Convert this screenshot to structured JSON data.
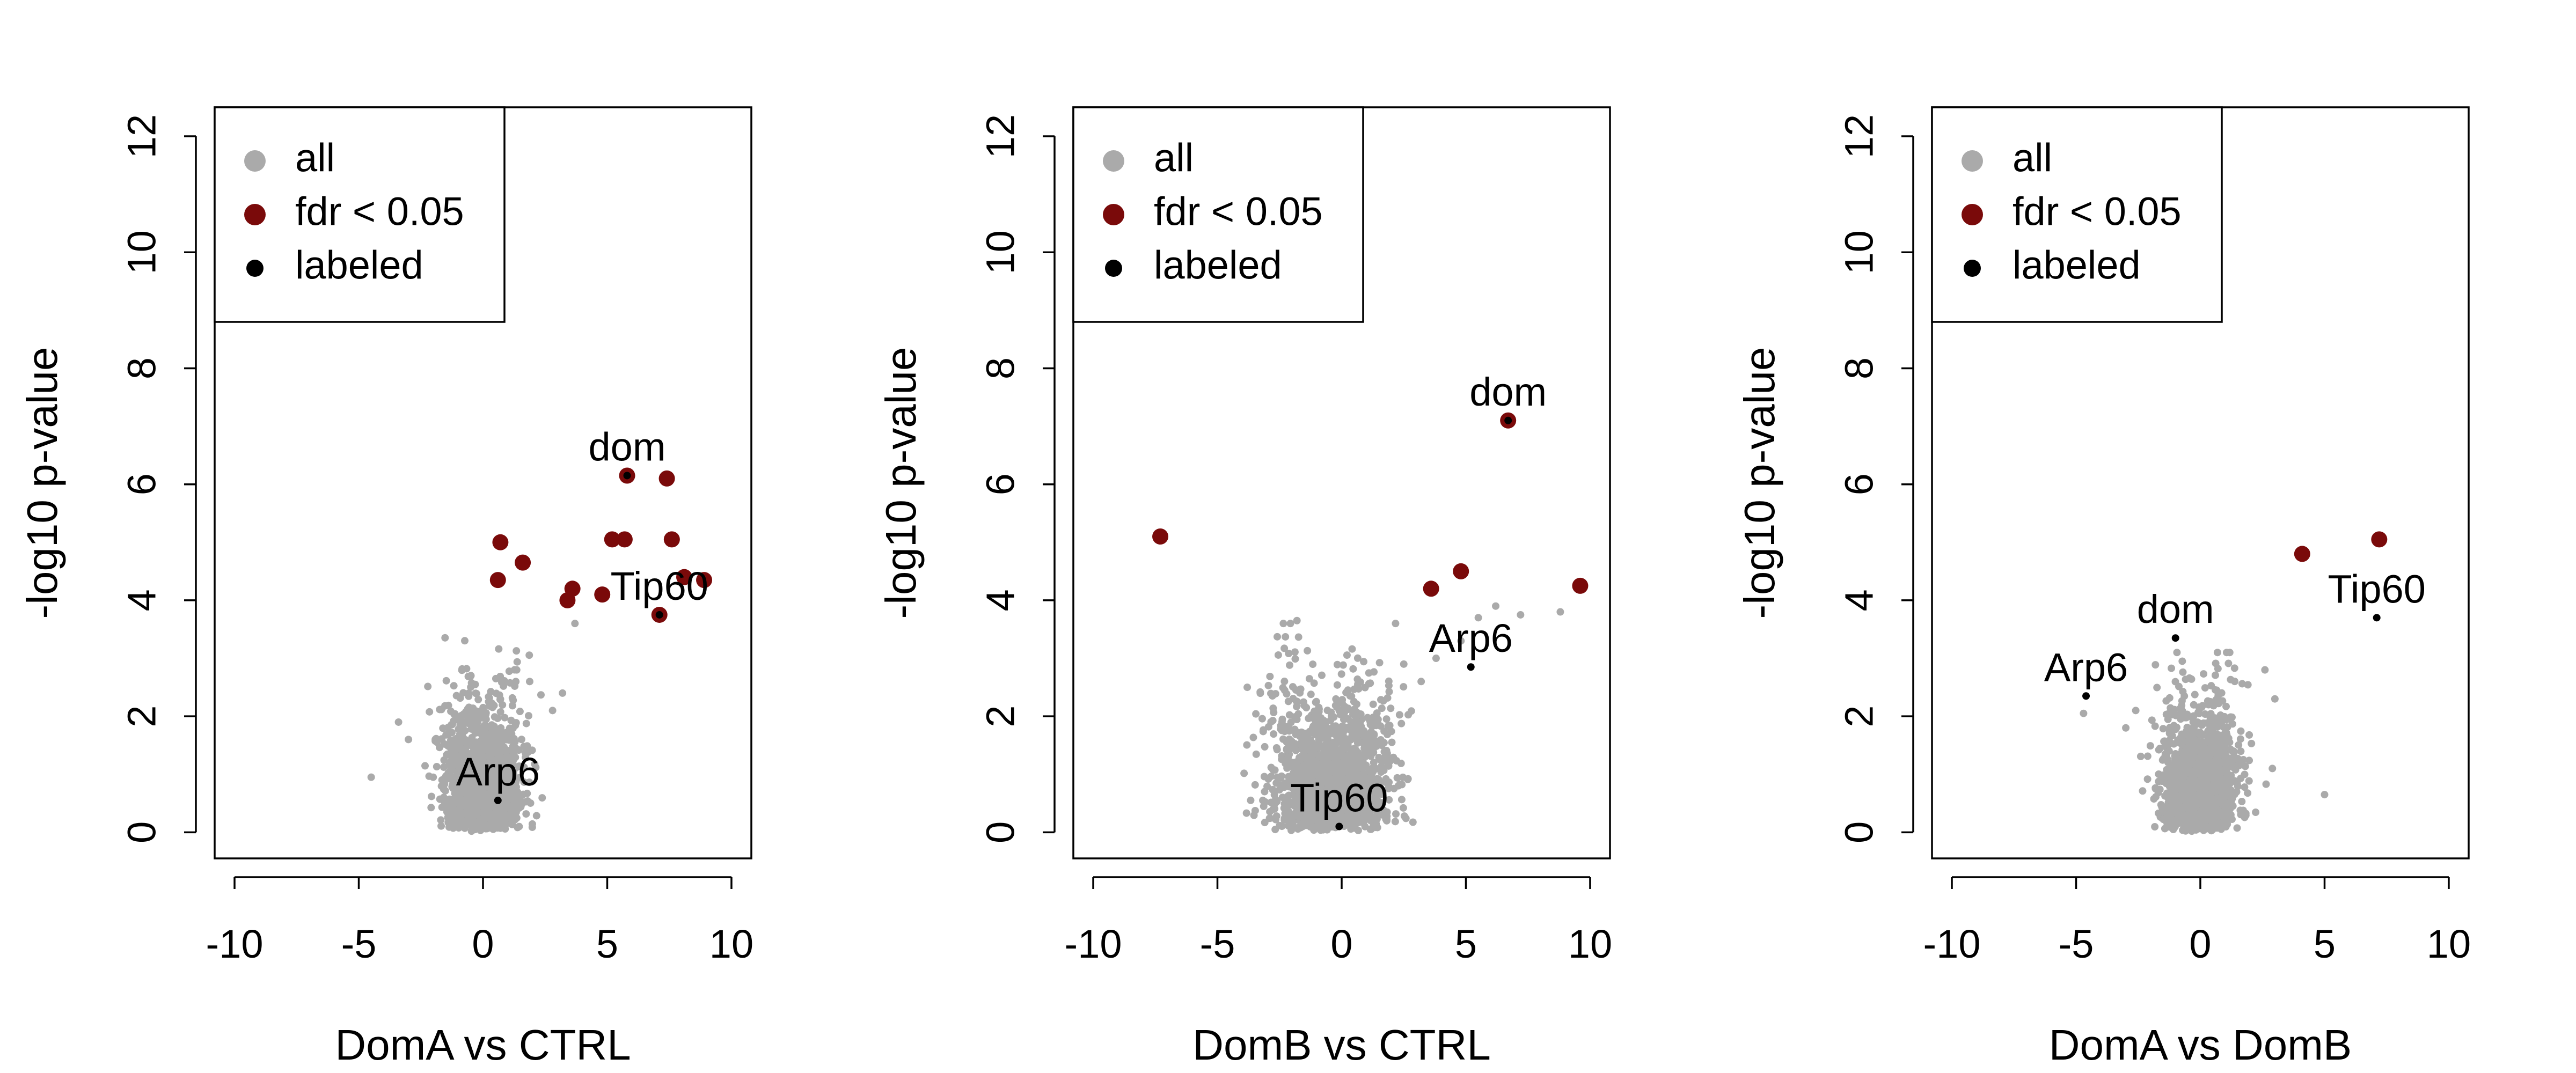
{
  "colors": {
    "all": "#aaaaaa",
    "fdr": "#7a0a0a",
    "labeled": "#000000"
  },
  "chart_data": [
    {
      "type": "scatter",
      "title": "",
      "xlabel": "DomA vs CTRL",
      "ylabel": "-log10 p-value",
      "xlim": [
        -10.8,
        10.8
      ],
      "ylim": [
        -0.45,
        12.5
      ],
      "xticks": [
        -10,
        -5,
        0,
        5,
        10
      ],
      "yticks": [
        0,
        2,
        4,
        6,
        8,
        10,
        12
      ],
      "grid": false,
      "legend": {
        "placement": "top-left",
        "entries": [
          "all",
          "fdr < 0.05",
          "labeled"
        ]
      },
      "cloud": {
        "center_x": 0.0,
        "spread_x": 0.75,
        "max_y": 3.4,
        "extra_points": [
          [
            -4.5,
            0.95
          ],
          [
            -3.4,
            1.9
          ],
          [
            3.2,
            2.4
          ],
          [
            2.8,
            2.1
          ],
          [
            -3.0,
            1.6
          ],
          [
            3.7,
            3.6
          ]
        ]
      },
      "series": [
        {
          "name": "fdr < 0.05",
          "points": [
            [
              0.7,
              5.0
            ],
            [
              0.6,
              4.35
            ],
            [
              1.6,
              4.65
            ],
            [
              3.6,
              4.2
            ],
            [
              3.4,
              4.0
            ],
            [
              4.8,
              4.1
            ],
            [
              5.2,
              5.05
            ],
            [
              5.7,
              5.05
            ],
            [
              5.8,
              6.15
            ],
            [
              7.4,
              6.1
            ],
            [
              7.6,
              5.05
            ],
            [
              8.1,
              4.4
            ],
            [
              8.9,
              4.35
            ],
            [
              7.1,
              3.75
            ]
          ]
        },
        {
          "name": "labeled",
          "points": [
            [
              5.8,
              6.15
            ],
            [
              7.1,
              3.75
            ],
            [
              0.6,
              0.55
            ]
          ]
        }
      ],
      "annotations": [
        {
          "text": "dom",
          "x": 5.8,
          "y": 6.15
        },
        {
          "text": "Tip60",
          "x": 7.1,
          "y": 3.75
        },
        {
          "text": "Arp6",
          "x": 0.6,
          "y": 0.55
        }
      ]
    },
    {
      "type": "scatter",
      "title": "",
      "xlabel": "DomB vs CTRL",
      "ylabel": "-log10 p-value",
      "xlim": [
        -10.8,
        10.8
      ],
      "ylim": [
        -0.45,
        12.5
      ],
      "xticks": [
        -10,
        -5,
        0,
        5,
        10
      ],
      "yticks": [
        0,
        2,
        4,
        6,
        8,
        10,
        12
      ],
      "grid": false,
      "legend": {
        "placement": "top-left",
        "entries": [
          "all",
          "fdr < 0.05",
          "labeled"
        ]
      },
      "cloud": {
        "center_x": -0.4,
        "spread_x": 1.1,
        "max_y": 3.6,
        "extra_points": [
          [
            -3.8,
            2.5
          ],
          [
            3.8,
            3.0
          ],
          [
            4.8,
            3.3
          ],
          [
            5.5,
            3.7
          ],
          [
            6.2,
            3.9
          ],
          [
            7.2,
            3.75
          ],
          [
            2.5,
            2.9
          ],
          [
            3.2,
            2.6
          ],
          [
            -1.8,
            3.65
          ],
          [
            8.8,
            3.8
          ]
        ]
      },
      "series": [
        {
          "name": "fdr < 0.05",
          "points": [
            [
              -7.3,
              5.1
            ],
            [
              3.6,
              4.2
            ],
            [
              4.8,
              4.5
            ],
            [
              6.7,
              7.1
            ],
            [
              9.6,
              4.25
            ]
          ]
        },
        {
          "name": "labeled",
          "points": [
            [
              6.7,
              7.1
            ],
            [
              5.2,
              2.85
            ],
            [
              -0.1,
              0.1
            ]
          ]
        }
      ],
      "annotations": [
        {
          "text": "dom",
          "x": 6.7,
          "y": 7.1
        },
        {
          "text": "Arp6",
          "x": 5.2,
          "y": 2.85
        },
        {
          "text": "Tip60",
          "x": -0.1,
          "y": 0.1
        }
      ]
    },
    {
      "type": "scatter",
      "title": "",
      "xlabel": "DomA vs DomB",
      "ylabel": "-log10 p-value",
      "xlim": [
        -10.8,
        10.8
      ],
      "ylim": [
        -0.45,
        12.5
      ],
      "xticks": [
        -10,
        -5,
        0,
        5,
        10
      ],
      "yticks": [
        0,
        2,
        4,
        6,
        8,
        10,
        12
      ],
      "grid": false,
      "legend": {
        "placement": "top-left",
        "entries": [
          "all",
          "fdr < 0.05",
          "labeled"
        ]
      },
      "cloud": {
        "center_x": 0.0,
        "spread_x": 0.7,
        "max_y": 3.1,
        "extra_points": [
          [
            -3.0,
            1.8
          ],
          [
            -2.6,
            2.1
          ],
          [
            2.6,
            2.8
          ],
          [
            3.0,
            2.3
          ],
          [
            5.0,
            0.65
          ],
          [
            -4.7,
            2.05
          ],
          [
            2.9,
            1.1
          ]
        ]
      },
      "series": [
        {
          "name": "fdr < 0.05",
          "points": [
            [
              4.1,
              4.8
            ],
            [
              7.2,
              5.05
            ]
          ]
        },
        {
          "name": "labeled",
          "points": [
            [
              7.1,
              3.7
            ],
            [
              -1.0,
              3.35
            ],
            [
              -4.6,
              2.35
            ]
          ]
        }
      ],
      "annotations": [
        {
          "text": "Tip60",
          "x": 7.1,
          "y": 3.7
        },
        {
          "text": "dom",
          "x": -1.0,
          "y": 3.35
        },
        {
          "text": "Arp6",
          "x": -4.6,
          "y": 2.35
        }
      ]
    }
  ]
}
